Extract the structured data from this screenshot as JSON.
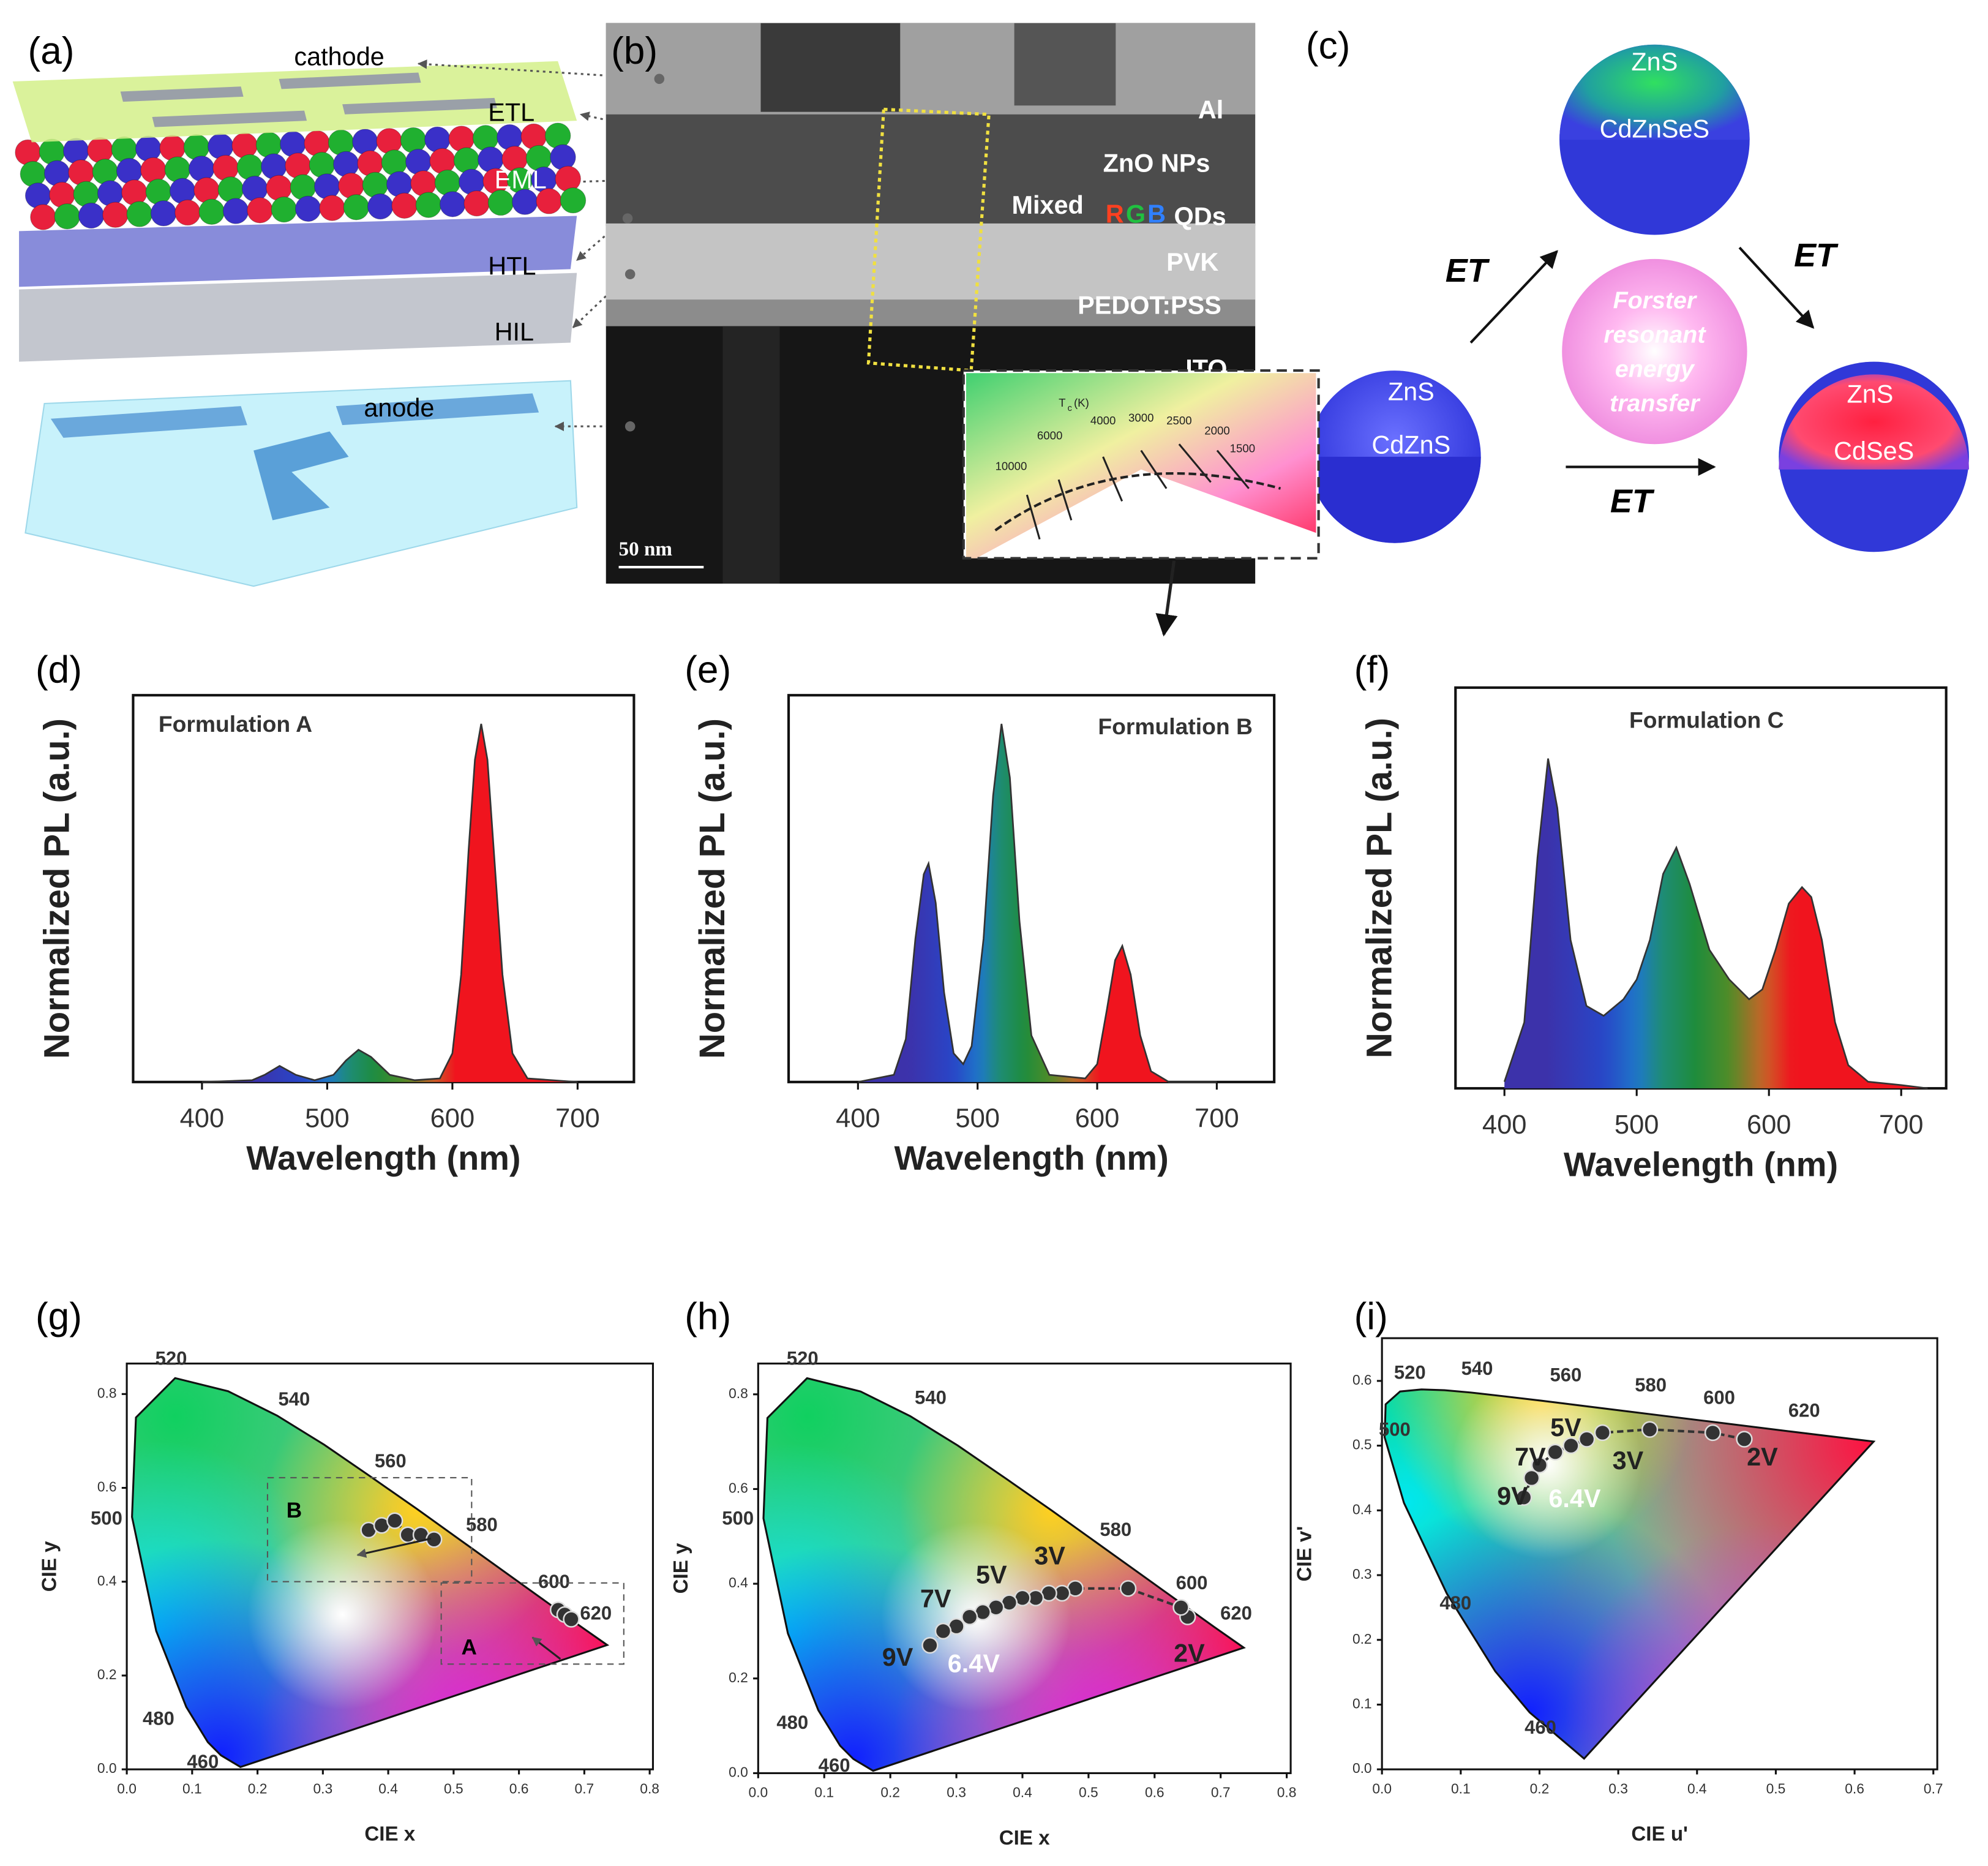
{
  "panels": {
    "a": {
      "label": "(a)",
      "layers": [
        "cathode",
        "ETL",
        "EML",
        "HTL",
        "HIL",
        "anode"
      ]
    },
    "b": {
      "label": "(b)",
      "layers": [
        "Al",
        "ZnO NPs",
        "PVK",
        "PEDOT:PSS",
        "ITO"
      ],
      "qd_line": [
        "Mixed",
        "R",
        "G",
        "B",
        "QDs"
      ],
      "scale_bar": "50 nm"
    },
    "c": {
      "label": "(c)",
      "green_qd": [
        "ZnS",
        "CdZnSeS"
      ],
      "blue_qd": [
        "ZnS",
        "CdZnS"
      ],
      "red_qd": [
        "ZnS",
        "CdSeS"
      ],
      "arrows": [
        "ET",
        "ET",
        "ET"
      ],
      "center": [
        "Forster",
        "resonant",
        "energy",
        "transfer"
      ]
    }
  },
  "chart_data": [
    {
      "panel_label": "(d)",
      "type": "line",
      "title": "Formulation A",
      "xlabel": "Wavelength (nm)",
      "ylabel": "Normalized PL (a.u.)",
      "x": [
        400,
        440,
        450,
        462,
        475,
        490,
        505,
        515,
        525,
        535,
        550,
        570,
        590,
        600,
        607,
        613,
        618,
        623,
        628,
        633,
        640,
        648,
        660,
        700
      ],
      "series": [
        {
          "values": [
            0,
            0.005,
            0.02,
            0.045,
            0.02,
            0.005,
            0.02,
            0.06,
            0.09,
            0.07,
            0.02,
            0.005,
            0.01,
            0.08,
            0.3,
            0.65,
            0.9,
            1.0,
            0.9,
            0.65,
            0.3,
            0.08,
            0.01,
            0
          ]
        }
      ],
      "xlim": [
        345,
        745
      ],
      "ylim": [
        0,
        1.08
      ],
      "xticks": [
        400,
        500,
        600,
        700
      ],
      "fill": "spectrum"
    },
    {
      "panel_label": "(e)",
      "type": "line",
      "title": "Formulation B",
      "xlabel": "Wavelength (nm)",
      "ylabel": "Normalized PL (a.u.)",
      "x": [
        400,
        430,
        440,
        448,
        455,
        459,
        465,
        472,
        480,
        488,
        495,
        505,
        513,
        520,
        527,
        535,
        545,
        560,
        590,
        600,
        608,
        615,
        621,
        628,
        636,
        645,
        660,
        700
      ],
      "series": [
        {
          "values": [
            0,
            0.02,
            0.12,
            0.4,
            0.58,
            0.61,
            0.5,
            0.25,
            0.08,
            0.05,
            0.1,
            0.4,
            0.8,
            1.0,
            0.85,
            0.45,
            0.13,
            0.02,
            0.01,
            0.05,
            0.2,
            0.34,
            0.38,
            0.3,
            0.13,
            0.03,
            0,
            0
          ]
        }
      ],
      "xlim": [
        342,
        748
      ],
      "ylim": [
        0,
        1.08
      ],
      "xticks": [
        400,
        500,
        600,
        700
      ],
      "fill": "spectrum"
    },
    {
      "panel_label": "(f)",
      "type": "line",
      "title": "Formulation C",
      "xlabel": "Wavelength (nm)",
      "ylabel": "Normalized PL (a.u.)",
      "x": [
        400,
        415,
        425,
        433,
        440,
        450,
        462,
        475,
        490,
        500,
        510,
        520,
        530,
        540,
        555,
        570,
        585,
        595,
        605,
        615,
        625,
        632,
        640,
        650,
        660,
        675,
        700,
        720
      ],
      "series": [
        {
          "values": [
            0.02,
            0.2,
            0.7,
            1.0,
            0.85,
            0.45,
            0.25,
            0.22,
            0.27,
            0.33,
            0.45,
            0.65,
            0.73,
            0.62,
            0.42,
            0.33,
            0.27,
            0.3,
            0.42,
            0.56,
            0.61,
            0.58,
            0.45,
            0.2,
            0.07,
            0.02,
            0.01,
            0
          ]
        }
      ],
      "xlim": [
        363,
        734
      ],
      "ylim": [
        0,
        1.215
      ],
      "xticks": [
        400,
        500,
        600,
        700
      ],
      "fill": "spectrum"
    },
    {
      "panel_label": "(g)",
      "type": "scatter",
      "locus": "xy",
      "xlabel": "CIE x",
      "ylabel": "CIE y",
      "xlim": [
        0,
        0.805
      ],
      "ylim": [
        0,
        0.865
      ],
      "xticks": [
        {
          "value": 0,
          "label": "0.0"
        },
        0.1,
        0.2,
        0.3,
        0.4,
        0.5,
        0.6,
        0.7,
        0.8
      ],
      "yticks": [
        {
          "value": 0,
          "label": "0.0"
        },
        0.2,
        0.4,
        0.6,
        0.8
      ],
      "series": [
        {
          "color": "#333333",
          "x": [
            0.66,
            0.67,
            0.68
          ],
          "values": [
            0.34,
            0.33,
            0.32
          ]
        },
        {
          "color": "#333333",
          "x": [
            0.37,
            0.39,
            0.41,
            0.43,
            0.45,
            0.47
          ],
          "values": [
            0.51,
            0.52,
            0.53,
            0.5,
            0.5,
            0.49
          ]
        }
      ],
      "wavelength_labels": [
        "520",
        "540",
        "560",
        "580",
        "600",
        "620",
        "500",
        "480",
        "460"
      ],
      "annotations": [
        "B",
        "A"
      ]
    },
    {
      "panel_label": "(h)",
      "type": "scatter",
      "locus": "xy",
      "xlabel": "CIE x",
      "ylabel": "CIE y",
      "xlim": [
        0,
        0.806
      ],
      "ylim": [
        0,
        0.865
      ],
      "xticks": [
        {
          "value": 0,
          "label": "0.0"
        },
        0.1,
        0.2,
        0.3,
        0.4,
        0.5,
        0.6,
        0.7,
        0.8
      ],
      "yticks": [
        {
          "value": 0,
          "label": "0.0"
        },
        0.2,
        0.4,
        0.6,
        0.8
      ],
      "series": [
        {
          "color": "#333333",
          "x": [
            0.65,
            0.64,
            0.56,
            0.48,
            0.46,
            0.44,
            0.42,
            0.4,
            0.38,
            0.36,
            0.34,
            0.32,
            0.3,
            0.28,
            0.26
          ],
          "values": [
            0.33,
            0.35,
            0.39,
            0.39,
            0.38,
            0.38,
            0.37,
            0.37,
            0.36,
            0.35,
            0.34,
            0.33,
            0.31,
            0.3,
            0.27
          ]
        }
      ],
      "wavelength_labels": [
        "520",
        "540",
        "580",
        "600",
        "620",
        "500",
        "480",
        "460"
      ],
      "annotations": [
        "2V",
        "3V",
        "5V",
        "7V",
        "9V",
        "6.4V"
      ],
      "inset": {
        "axis": [
          "T",
          "c",
          "(K)"
        ],
        "temperatures": [
          "10000",
          "6000",
          "4000",
          "3000",
          "2500",
          "2000",
          "1500"
        ]
      }
    },
    {
      "panel_label": "(i)",
      "type": "scatter",
      "locus": "uv",
      "xlabel": "CIE u'",
      "ylabel": "CIE v'",
      "xlim": [
        0,
        0.705
      ],
      "ylim": [
        0,
        0.666
      ],
      "xticks": [
        {
          "value": 0,
          "label": "0.0"
        },
        0.1,
        0.2,
        0.3,
        0.4,
        0.5,
        0.6,
        0.7
      ],
      "yticks": [
        {
          "value": 0,
          "label": "0.0"
        },
        0.1,
        0.2,
        0.3,
        0.4,
        0.5,
        0.6
      ],
      "series": [
        {
          "color": "#333333",
          "x": [
            0.46,
            0.42,
            0.34,
            0.28,
            0.26,
            0.24,
            0.22,
            0.2,
            0.19,
            0.18
          ],
          "values": [
            0.51,
            0.52,
            0.525,
            0.52,
            0.51,
            0.5,
            0.49,
            0.47,
            0.45,
            0.42
          ]
        }
      ],
      "wavelength_labels": [
        "520",
        "540",
        "560",
        "580",
        "600",
        "620",
        "500",
        "480",
        "460"
      ],
      "annotations": [
        "5V",
        "7V",
        "9V",
        "3V",
        "2V",
        "6.4V"
      ]
    }
  ]
}
